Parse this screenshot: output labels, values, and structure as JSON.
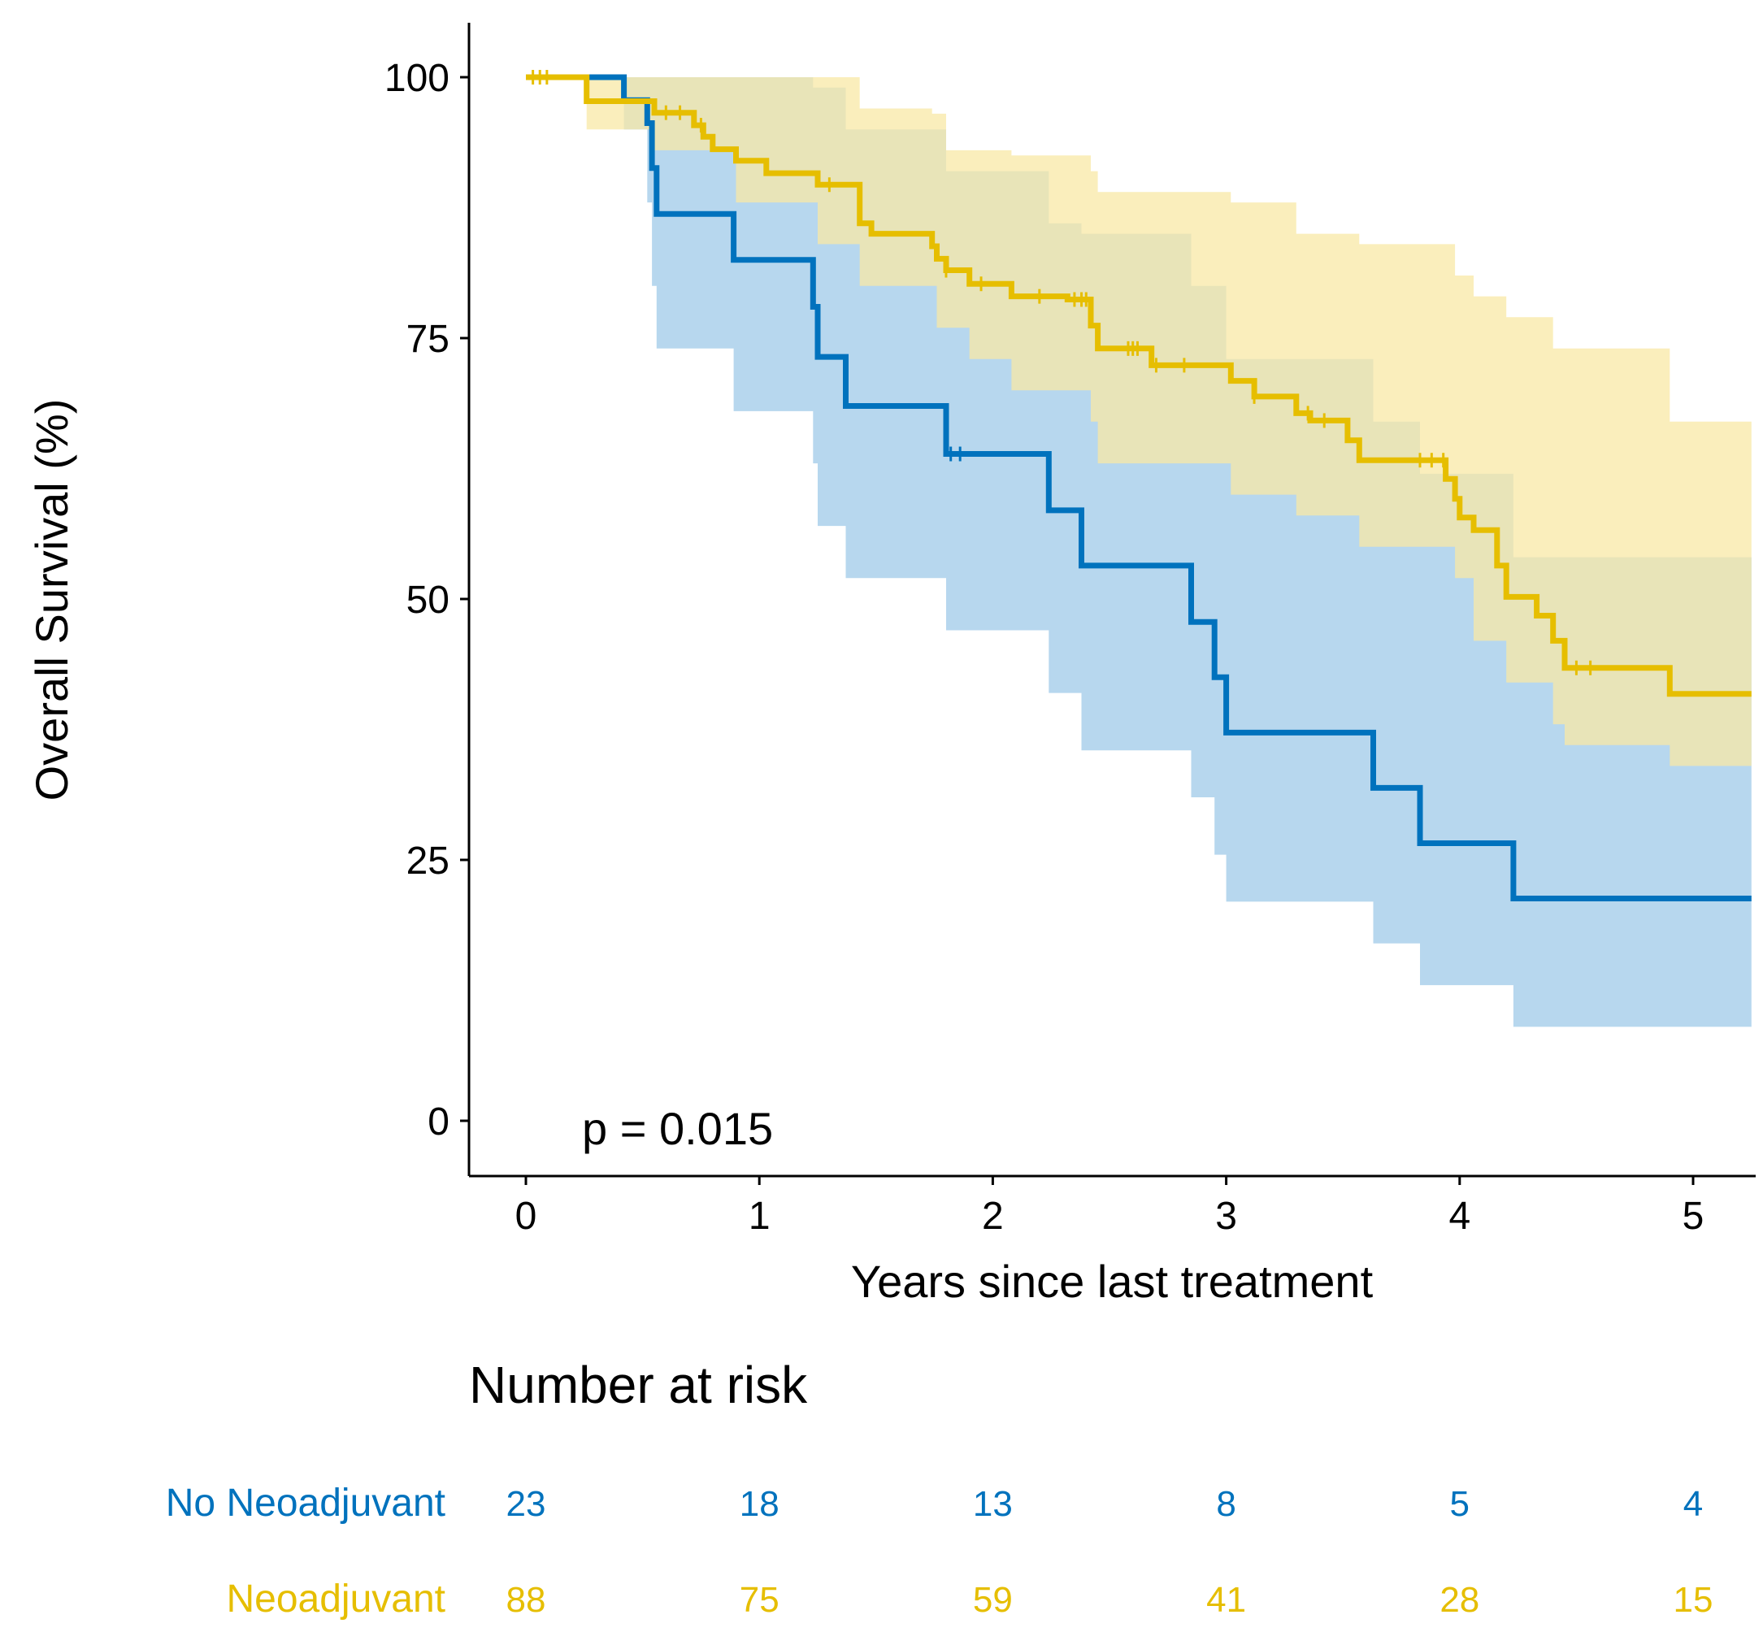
{
  "chart_data": {
    "type": "line",
    "subtype": "kaplan-meier",
    "title": "",
    "xlabel": "Years since last treatment",
    "ylabel": "Overall Survival (%)",
    "xlim": [
      -0.25,
      5.25
    ],
    "ylim": [
      -5,
      105
    ],
    "xticks": [
      0,
      1,
      2,
      3,
      4,
      5
    ],
    "yticks": [
      0,
      25,
      50,
      75,
      100
    ],
    "grid": false,
    "annotation": "p = 0.015",
    "colors": {
      "no_neo": "#0072BD",
      "neo": "#E6BE00",
      "no_neo_fill": "#B7D7EE",
      "neo_fill": "#F8E8A6",
      "overlap_fill": "#C5CC99"
    },
    "series": [
      {
        "name": "No Neoadjuvant",
        "color": "#0072BD",
        "steps": [
          [
            0,
            100
          ],
          [
            0.42,
            100
          ],
          [
            0.42,
            97.8
          ],
          [
            0.52,
            97.8
          ],
          [
            0.52,
            95.6
          ],
          [
            0.54,
            95.6
          ],
          [
            0.54,
            91.3
          ],
          [
            0.56,
            91.3
          ],
          [
            0.56,
            86.9
          ],
          [
            0.89,
            86.9
          ],
          [
            0.89,
            82.5
          ],
          [
            1.23,
            82.5
          ],
          [
            1.23,
            78
          ],
          [
            1.25,
            78
          ],
          [
            1.25,
            73.2
          ],
          [
            1.37,
            73.2
          ],
          [
            1.37,
            68.5
          ],
          [
            1.8,
            68.5
          ],
          [
            1.8,
            63.9
          ],
          [
            2.24,
            63.9
          ],
          [
            2.24,
            58.5
          ],
          [
            2.38,
            58.5
          ],
          [
            2.38,
            53.2
          ],
          [
            2.85,
            53.2
          ],
          [
            2.85,
            47.8
          ],
          [
            2.95,
            47.8
          ],
          [
            2.95,
            42.5
          ],
          [
            3.0,
            42.5
          ],
          [
            3.0,
            37.2
          ],
          [
            3.63,
            37.2
          ],
          [
            3.63,
            31.9
          ],
          [
            3.83,
            31.9
          ],
          [
            3.83,
            26.6
          ],
          [
            4.23,
            26.6
          ],
          [
            4.23,
            21.3
          ],
          [
            5.25,
            21.3
          ]
        ],
        "upper": [
          [
            0,
            100
          ],
          [
            0.42,
            100
          ],
          [
            0.56,
            100
          ],
          [
            1.23,
            99
          ],
          [
            1.37,
            95
          ],
          [
            1.8,
            91
          ],
          [
            2.24,
            86
          ],
          [
            2.38,
            85
          ],
          [
            2.85,
            80
          ],
          [
            3.0,
            73
          ],
          [
            3.63,
            67
          ],
          [
            3.83,
            62
          ],
          [
            4.23,
            54
          ],
          [
            5.25,
            54
          ]
        ],
        "lower": [
          [
            0,
            100
          ],
          [
            0.42,
            100
          ],
          [
            0.42,
            95
          ],
          [
            0.52,
            95
          ],
          [
            0.52,
            88
          ],
          [
            0.54,
            88
          ],
          [
            0.54,
            80
          ],
          [
            0.56,
            80
          ],
          [
            0.56,
            74
          ],
          [
            0.89,
            74
          ],
          [
            0.89,
            68
          ],
          [
            1.23,
            68
          ],
          [
            1.23,
            63
          ],
          [
            1.25,
            63
          ],
          [
            1.25,
            57
          ],
          [
            1.37,
            57
          ],
          [
            1.37,
            52
          ],
          [
            1.8,
            52
          ],
          [
            1.8,
            47
          ],
          [
            2.24,
            47
          ],
          [
            2.24,
            41
          ],
          [
            2.38,
            41
          ],
          [
            2.38,
            35.5
          ],
          [
            2.85,
            35.5
          ],
          [
            2.85,
            31
          ],
          [
            2.95,
            31
          ],
          [
            2.95,
            25.5
          ],
          [
            3.0,
            25.5
          ],
          [
            3.0,
            21
          ],
          [
            3.63,
            21
          ],
          [
            3.63,
            17
          ],
          [
            3.83,
            17
          ],
          [
            3.83,
            13
          ],
          [
            4.23,
            13
          ],
          [
            4.23,
            9
          ],
          [
            5.25,
            9
          ]
        ],
        "censor_x": [
          1.82,
          1.86
        ],
        "at_risk": [
          23,
          18,
          13,
          8,
          5,
          4
        ]
      },
      {
        "name": "Neoadjuvant",
        "color": "#E6BE00",
        "steps": [
          [
            0,
            100
          ],
          [
            0.26,
            100
          ],
          [
            0.26,
            97.7
          ],
          [
            0.55,
            97.7
          ],
          [
            0.55,
            96.6
          ],
          [
            0.72,
            96.6
          ],
          [
            0.72,
            95.4
          ],
          [
            0.76,
            95.4
          ],
          [
            0.76,
            94.3
          ],
          [
            0.8,
            94.3
          ],
          [
            0.8,
            93.1
          ],
          [
            0.9,
            93.1
          ],
          [
            0.9,
            92
          ],
          [
            1.03,
            92
          ],
          [
            1.03,
            90.8
          ],
          [
            1.25,
            90.8
          ],
          [
            1.25,
            89.7
          ],
          [
            1.43,
            89.7
          ],
          [
            1.43,
            86
          ],
          [
            1.48,
            86
          ],
          [
            1.48,
            85
          ],
          [
            1.74,
            85
          ],
          [
            1.74,
            83.8
          ],
          [
            1.76,
            83.8
          ],
          [
            1.76,
            82.6
          ],
          [
            1.8,
            82.6
          ],
          [
            1.8,
            81.5
          ],
          [
            1.9,
            81.5
          ],
          [
            1.9,
            80.2
          ],
          [
            2.08,
            80.2
          ],
          [
            2.08,
            79
          ],
          [
            2.32,
            79
          ],
          [
            2.32,
            78.7
          ],
          [
            2.42,
            78.7
          ],
          [
            2.42,
            76.2
          ],
          [
            2.45,
            76.2
          ],
          [
            2.45,
            74
          ],
          [
            2.68,
            74
          ],
          [
            2.68,
            72.4
          ],
          [
            3.02,
            72.4
          ],
          [
            3.02,
            70.9
          ],
          [
            3.12,
            70.9
          ],
          [
            3.12,
            69.4
          ],
          [
            3.3,
            69.4
          ],
          [
            3.3,
            67.8
          ],
          [
            3.36,
            67.8
          ],
          [
            3.36,
            67.1
          ],
          [
            3.52,
            67.1
          ],
          [
            3.52,
            65.2
          ],
          [
            3.57,
            65.2
          ],
          [
            3.57,
            63.3
          ],
          [
            3.94,
            63.3
          ],
          [
            3.94,
            61.5
          ],
          [
            3.98,
            61.5
          ],
          [
            3.98,
            59.6
          ],
          [
            4.0,
            59.6
          ],
          [
            4.0,
            57.8
          ],
          [
            4.06,
            57.8
          ],
          [
            4.06,
            56.6
          ],
          [
            4.16,
            56.6
          ],
          [
            4.16,
            53.2
          ],
          [
            4.2,
            53.2
          ],
          [
            4.2,
            50.2
          ],
          [
            4.33,
            50.2
          ],
          [
            4.33,
            48.4
          ],
          [
            4.4,
            48.4
          ],
          [
            4.4,
            46
          ],
          [
            4.45,
            46
          ],
          [
            4.45,
            43.4
          ],
          [
            4.9,
            43.4
          ],
          [
            4.9,
            40.9
          ],
          [
            5.25,
            40.9
          ]
        ],
        "upper": [
          [
            0,
            100
          ],
          [
            0.26,
            100
          ],
          [
            1.25,
            100
          ],
          [
            1.43,
            97
          ],
          [
            1.74,
            96.5
          ],
          [
            1.8,
            93
          ],
          [
            2.08,
            92.5
          ],
          [
            2.42,
            91
          ],
          [
            2.45,
            89
          ],
          [
            3.02,
            88
          ],
          [
            3.3,
            85
          ],
          [
            3.57,
            84
          ],
          [
            3.98,
            81
          ],
          [
            4.06,
            79
          ],
          [
            4.2,
            77
          ],
          [
            4.4,
            74
          ],
          [
            4.9,
            67
          ],
          [
            5.25,
            63
          ]
        ],
        "lower": [
          [
            0,
            100
          ],
          [
            0.26,
            100
          ],
          [
            0.26,
            95
          ],
          [
            0.55,
            95
          ],
          [
            0.55,
            93
          ],
          [
            0.9,
            93
          ],
          [
            0.9,
            88
          ],
          [
            1.25,
            88
          ],
          [
            1.25,
            84
          ],
          [
            1.43,
            84
          ],
          [
            1.43,
            80
          ],
          [
            1.76,
            80
          ],
          [
            1.76,
            76
          ],
          [
            1.9,
            76
          ],
          [
            1.9,
            73
          ],
          [
            2.08,
            73
          ],
          [
            2.08,
            70
          ],
          [
            2.42,
            70
          ],
          [
            2.42,
            67
          ],
          [
            2.45,
            67
          ],
          [
            2.45,
            63
          ],
          [
            3.02,
            63
          ],
          [
            3.02,
            60
          ],
          [
            3.3,
            60
          ],
          [
            3.3,
            58
          ],
          [
            3.57,
            58
          ],
          [
            3.57,
            55
          ],
          [
            3.98,
            55
          ],
          [
            3.98,
            52
          ],
          [
            4.06,
            52
          ],
          [
            4.06,
            46
          ],
          [
            4.2,
            46
          ],
          [
            4.2,
            42
          ],
          [
            4.4,
            42
          ],
          [
            4.4,
            38
          ],
          [
            4.45,
            38
          ],
          [
            4.45,
            36
          ],
          [
            4.9,
            36
          ],
          [
            4.9,
            34
          ],
          [
            5.25,
            34
          ]
        ],
        "censor_x": [
          0.03,
          0.06,
          0.09,
          0.6,
          0.66,
          0.75,
          1.3,
          1.8,
          1.95,
          2.2,
          2.35,
          2.38,
          2.4,
          2.58,
          2.6,
          2.62,
          2.7,
          2.82,
          3.12,
          3.35,
          3.42,
          3.83,
          3.88,
          3.93,
          4.5,
          4.56
        ]
      }
    ],
    "risk_table": {
      "title": "Number at risk",
      "rows": [
        {
          "label": "No Neoadjuvant",
          "color": "#0072BD",
          "values": [
            23,
            18,
            13,
            8,
            5,
            4
          ]
        },
        {
          "label": "Neoadjuvant",
          "color": "#E6BE00",
          "values": [
            88,
            75,
            59,
            41,
            28,
            15
          ]
        }
      ]
    }
  }
}
